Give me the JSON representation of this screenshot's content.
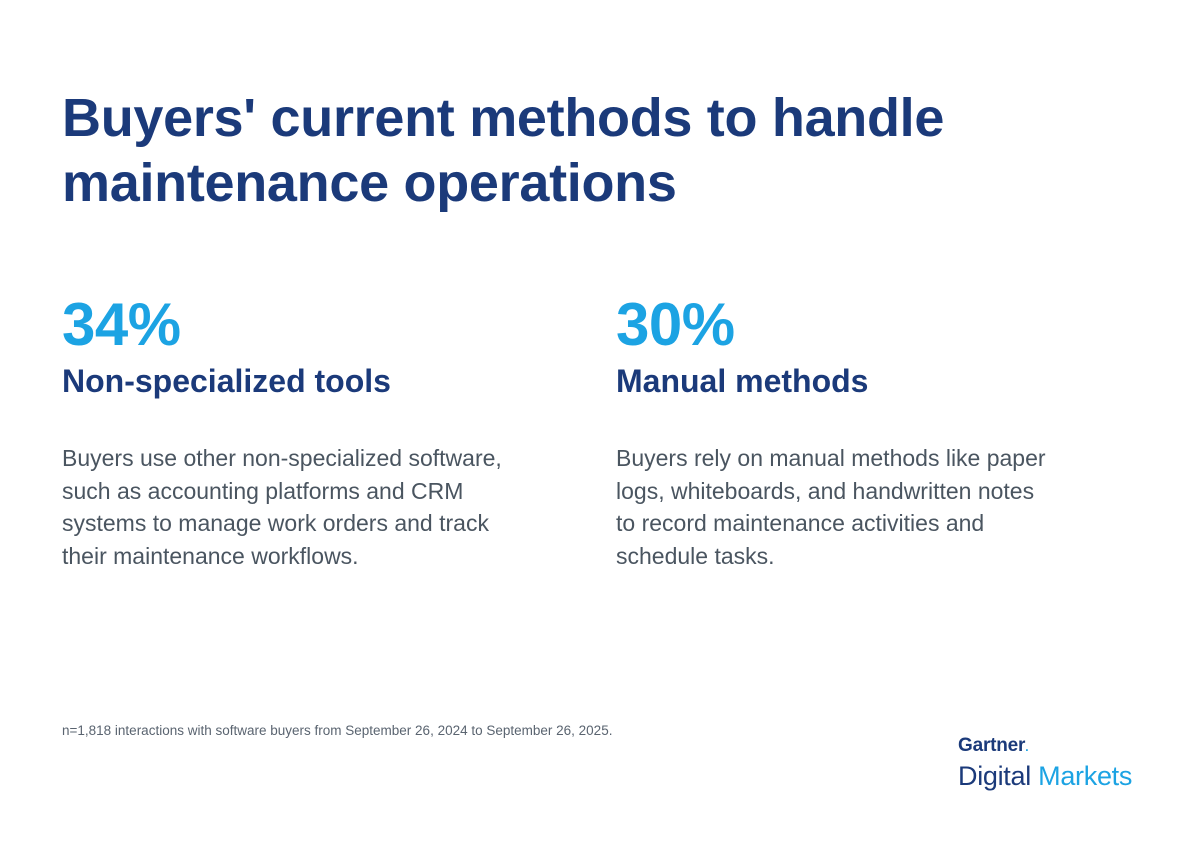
{
  "title": "Buyers' current methods to handle maintenance operations",
  "stats": [
    {
      "value": "34%",
      "label": "Non-specialized tools",
      "description": "Buyers use other non-specialized software, such as accounting platforms and CRM systems to manage work orders and track their maintenance workflows."
    },
    {
      "value": "30%",
      "label": "Manual methods",
      "description": "Buyers rely on manual methods like paper logs, whiteboards, and handwritten notes to record maintenance activities and schedule tasks."
    }
  ],
  "footnote": "n=1,818 interactions with software buyers from September 26, 2024 to September 26, 2025.",
  "logo": {
    "brand": "Gartner",
    "product_part1": "Digital",
    "product_part2": "Markets"
  },
  "colors": {
    "navy": "#1b3a7a",
    "accent_blue": "#1ca3e3",
    "body_text": "#4a5560"
  }
}
